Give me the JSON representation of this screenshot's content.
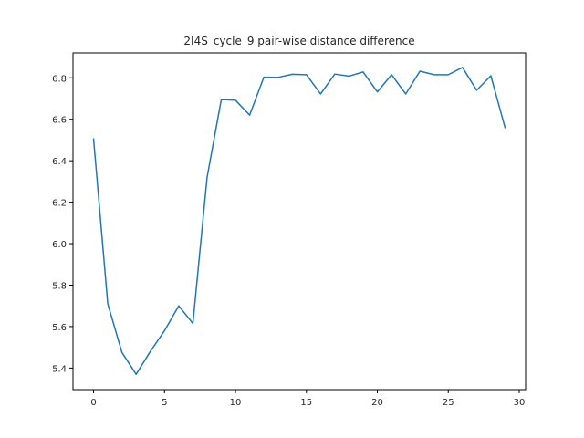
{
  "chart_data": {
    "type": "line",
    "title": "2I4S_cycle_9 pair-wise distance difference",
    "xlabel": "",
    "ylabel": "",
    "xlim": [
      -1.45,
      30.45
    ],
    "ylim": [
      5.296,
      6.92
    ],
    "grid": false,
    "legend": "none",
    "xticks": [
      0,
      5,
      10,
      15,
      20,
      25,
      30
    ],
    "yticks": [
      5.4,
      5.6,
      5.8,
      6.0,
      6.2,
      6.4,
      6.6,
      6.8
    ],
    "x": [
      0,
      1,
      2,
      3,
      4,
      5,
      6,
      7,
      8,
      9,
      10,
      11,
      12,
      13,
      14,
      15,
      16,
      17,
      18,
      19,
      20,
      21,
      22,
      23,
      24,
      25,
      26,
      27,
      28,
      29
    ],
    "series": [
      {
        "color": "#1f77b4",
        "values": [
          6.505,
          5.71,
          5.475,
          5.37,
          5.48,
          5.58,
          5.7,
          5.615,
          6.32,
          6.695,
          6.692,
          6.62,
          6.803,
          6.802,
          6.817,
          6.815,
          6.722,
          6.818,
          6.808,
          6.828,
          6.732,
          6.815,
          6.722,
          6.832,
          6.815,
          6.815,
          6.85,
          6.74,
          6.81,
          6.56
        ]
      }
    ]
  }
}
